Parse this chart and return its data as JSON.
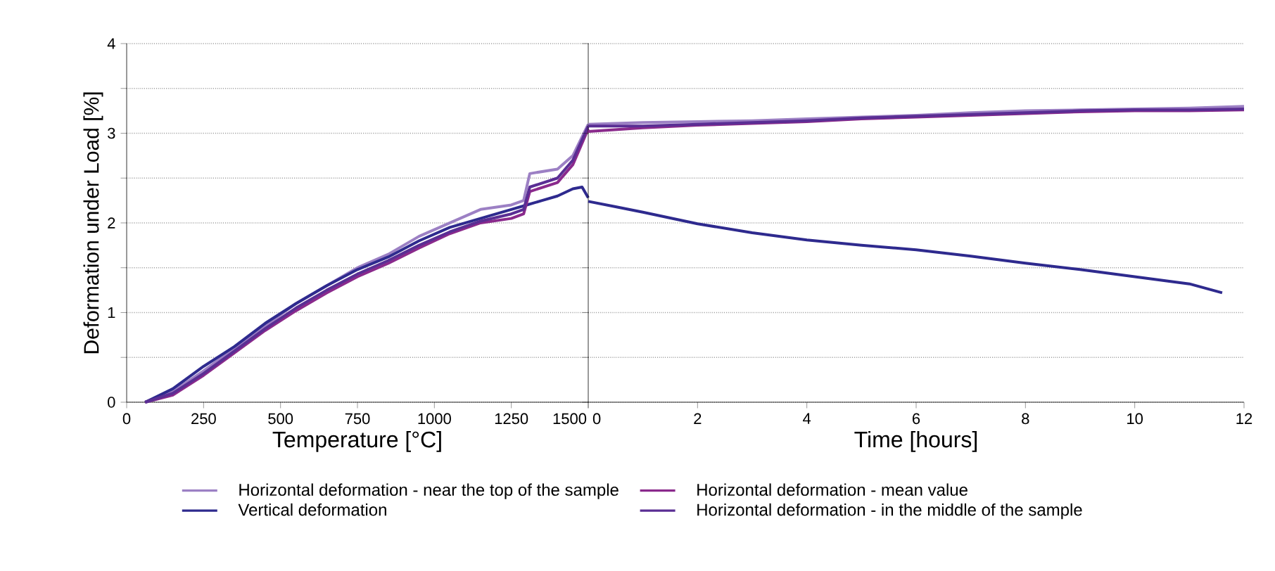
{
  "chart_data": [
    {
      "type": "line",
      "xlabel": "Temperature [°C]",
      "ylabel": "Deformation under Load [%]",
      "xlim": [
        0,
        1500
      ],
      "xticks": [
        0,
        250,
        500,
        750,
        1000,
        1250,
        1500
      ],
      "ylim": [
        0,
        4
      ],
      "yticks": [
        0,
        {
          "value": 0.5,
          "label": null
        },
        1,
        {
          "value": 1.5,
          "label": null
        },
        2,
        {
          "value": 2.5,
          "label": null
        },
        3,
        {
          "value": 3.5,
          "label": null
        },
        4
      ],
      "grid": "y",
      "legend": "bottom",
      "series": [
        {
          "name": "Horizontal deformation - near the top of the sample",
          "color": "#9c80c4",
          "x": [
            60,
            150,
            250,
            350,
            450,
            550,
            650,
            750,
            850,
            950,
            1050,
            1150,
            1250,
            1290,
            1310,
            1400,
            1450,
            1500
          ],
          "values": [
            0,
            0.12,
            0.35,
            0.6,
            0.85,
            1.1,
            1.3,
            1.5,
            1.65,
            1.85,
            2.0,
            2.15,
            2.2,
            2.25,
            2.55,
            2.6,
            2.75,
            3.1
          ]
        },
        {
          "name": "Vertical deformation",
          "color": "#2e2a8e",
          "x": [
            60,
            150,
            250,
            350,
            450,
            550,
            650,
            750,
            850,
            950,
            1050,
            1150,
            1250,
            1300,
            1350,
            1400,
            1450,
            1480,
            1500
          ],
          "values": [
            0,
            0.15,
            0.4,
            0.62,
            0.88,
            1.1,
            1.3,
            1.48,
            1.62,
            1.8,
            1.95,
            2.05,
            2.15,
            2.2,
            2.25,
            2.3,
            2.38,
            2.4,
            2.28
          ]
        },
        {
          "name": "Horizontal deformation - mean value",
          "color": "#8a2a8c",
          "x": [
            60,
            150,
            250,
            350,
            450,
            550,
            650,
            750,
            850,
            950,
            1050,
            1150,
            1250,
            1290,
            1310,
            1400,
            1450,
            1500
          ],
          "values": [
            0,
            0.08,
            0.3,
            0.55,
            0.8,
            1.02,
            1.22,
            1.4,
            1.55,
            1.72,
            1.88,
            2.0,
            2.05,
            2.1,
            2.35,
            2.45,
            2.65,
            3.05
          ]
        },
        {
          "name": "Horizontal deformation - in the middle of the sample",
          "color": "#5a2e94",
          "x": [
            60,
            150,
            250,
            350,
            450,
            550,
            650,
            750,
            850,
            950,
            1050,
            1150,
            1250,
            1290,
            1310,
            1400,
            1450,
            1500
          ],
          "values": [
            0,
            0.1,
            0.32,
            0.57,
            0.82,
            1.05,
            1.25,
            1.43,
            1.58,
            1.75,
            1.9,
            2.02,
            2.1,
            2.15,
            2.4,
            2.5,
            2.7,
            3.08
          ]
        }
      ]
    },
    {
      "type": "line",
      "xlabel": "Time [hours]",
      "xlim": [
        0,
        12
      ],
      "xticks": [
        0,
        2,
        4,
        6,
        8,
        10,
        12
      ],
      "ylim": [
        0,
        4
      ],
      "yticks": [
        0,
        {
          "value": 0.5,
          "label": null
        },
        1,
        {
          "value": 1.5,
          "label": null
        },
        2,
        {
          "value": 2.5,
          "label": null
        },
        3,
        {
          "value": 3.5,
          "label": null
        },
        4
      ],
      "grid": "y",
      "tick_labels": "x",
      "series": [
        {
          "color": "#9c80c4",
          "x": [
            0,
            1,
            2,
            3,
            4,
            5,
            6,
            7,
            8,
            9,
            10,
            11,
            12
          ],
          "values": [
            3.1,
            3.12,
            3.13,
            3.14,
            3.16,
            3.18,
            3.2,
            3.23,
            3.25,
            3.26,
            3.27,
            3.28,
            3.3
          ]
        },
        {
          "color": "#2e2a8e",
          "x": [
            0,
            0.5,
            1,
            2,
            3,
            4,
            5,
            6,
            7,
            8,
            9,
            10,
            11,
            11.6
          ],
          "values": [
            2.24,
            2.18,
            2.12,
            1.99,
            1.89,
            1.81,
            1.75,
            1.7,
            1.63,
            1.55,
            1.48,
            1.4,
            1.32,
            1.22
          ]
        },
        {
          "color": "#8a2a8c",
          "x": [
            0,
            1,
            2,
            3,
            4,
            5,
            6,
            7,
            8,
            9,
            10,
            11,
            12
          ],
          "values": [
            3.02,
            3.06,
            3.09,
            3.11,
            3.13,
            3.16,
            3.18,
            3.2,
            3.22,
            3.24,
            3.25,
            3.25,
            3.26
          ]
        },
        {
          "color": "#5a2e94",
          "x": [
            0,
            1,
            2,
            3,
            4,
            5,
            6,
            7,
            8,
            9,
            10,
            11,
            12
          ],
          "values": [
            3.08,
            3.08,
            3.1,
            3.12,
            3.14,
            3.17,
            3.19,
            3.21,
            3.23,
            3.25,
            3.26,
            3.26,
            3.27
          ]
        }
      ]
    }
  ]
}
